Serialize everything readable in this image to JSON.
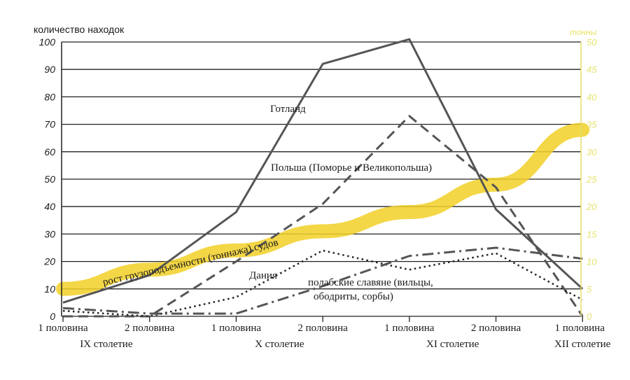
{
  "chart_data": {
    "type": "line",
    "ylabel": "количество находок",
    "y2label": "тонны",
    "ylim": [
      0,
      100
    ],
    "y2lim": [
      0,
      50
    ],
    "yticks": [
      "0",
      "10",
      "20",
      "30",
      "40",
      "50",
      "60",
      "70",
      "80",
      "90",
      "100"
    ],
    "y2ticks": [
      "0",
      "5",
      "10",
      "15",
      "20",
      "25",
      "30",
      "35",
      "40",
      "45",
      "50"
    ],
    "categories": [
      "1 половина",
      "2 половина",
      "1 половина",
      "2 половина",
      "1 половина",
      "2 половина",
      "1 половина"
    ],
    "centuries": [
      "IX столетие",
      "X столетие",
      "XI столетие",
      "XII столетие"
    ],
    "grid": true,
    "series": [
      {
        "name": "Готланд",
        "style": "solid",
        "color": "#555555",
        "values": [
          5,
          15,
          38,
          92,
          101,
          39,
          10
        ]
      },
      {
        "name": "Польша (Поморье и Великопольша)",
        "style": "dashed",
        "color": "#555555",
        "values": [
          0,
          0,
          20,
          41,
          73,
          47,
          0
        ]
      },
      {
        "name": "Дания",
        "style": "dotted",
        "color": "#222222",
        "values": [
          2,
          0,
          7,
          24,
          17,
          23,
          6
        ]
      },
      {
        "name": "полабские славяне (вильцы, ободриты, сорбы)",
        "style": "dashdot",
        "color": "#555555",
        "values": [
          3,
          1,
          1,
          11,
          22,
          25,
          21
        ]
      },
      {
        "name": "рост грузоподъемности (тоннажа) судов",
        "style": "band",
        "color": "#f2d027",
        "axis": "right",
        "values": [
          5,
          8.5,
          12,
          15.5,
          19,
          24,
          34
        ]
      }
    ]
  }
}
